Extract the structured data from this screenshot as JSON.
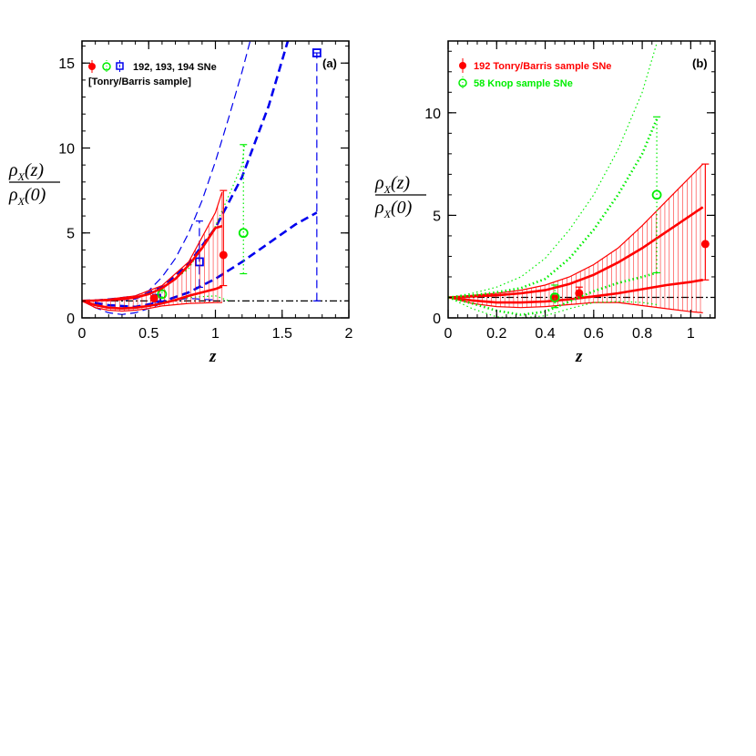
{
  "colors": {
    "red": "#ff0000",
    "green": "#00ee00",
    "blue": "#0000ee",
    "black": "#000000"
  },
  "chart_data": [
    {
      "type": "line",
      "panel_tag": "(a)",
      "xlabel": "z",
      "ylabel": {
        "main": "ρ",
        "sub": "X",
        "num_arg": "(z)",
        "den_arg": "(0)"
      },
      "xlim": [
        0,
        2
      ],
      "ylim": [
        0,
        16.3
      ],
      "xticks": [
        0,
        0.5,
        1,
        1.5,
        2
      ],
      "xtick_labels": [
        "0",
        "0.5",
        "1",
        "1.5",
        "2"
      ],
      "yticks": [
        0,
        5,
        10,
        15
      ],
      "ytick_labels": [
        "0",
        "5",
        "10",
        "15"
      ],
      "legend": {
        "placement": "top-left",
        "line1": "192, 193, 194 SNe",
        "line2": "[Tonry/Barris sample]"
      },
      "reference_line": {
        "y": 1,
        "style": "dash-dot",
        "color": "#000000"
      },
      "series": [
        {
          "color": "#0000ee",
          "style": "dashed",
          "band_lower_outer": [
            [
              0,
              1
            ],
            [
              0.1,
              0.6
            ],
            [
              0.2,
              0.3
            ],
            [
              0.3,
              0.2
            ],
            [
              0.4,
              0.3
            ],
            [
              0.5,
              0.55
            ],
            [
              0.6,
              0.85
            ],
            [
              0.7,
              1.05
            ],
            [
              0.8,
              1.15
            ],
            [
              0.9,
              1.1
            ],
            [
              1.0,
              1.05
            ]
          ],
          "band_upper_outer": [
            [
              0,
              1
            ],
            [
              0.1,
              1.05
            ],
            [
              0.2,
              1.12
            ],
            [
              0.3,
              1.2
            ],
            [
              0.4,
              1.3
            ],
            [
              0.5,
              1.6
            ],
            [
              0.6,
              2.4
            ],
            [
              0.7,
              3.5
            ],
            [
              0.8,
              5.0
            ],
            [
              0.9,
              6.9
            ],
            [
              1.0,
              9.2
            ],
            [
              1.1,
              11.8
            ],
            [
              1.2,
              14.5
            ],
            [
              1.3,
              17.5
            ]
          ],
          "band_lower_inner": [
            [
              0,
              1
            ],
            [
              0.2,
              0.75
            ],
            [
              0.4,
              0.65
            ],
            [
              0.6,
              0.95
            ],
            [
              0.8,
              1.5
            ],
            [
              1.0,
              2.3
            ],
            [
              1.2,
              3.3
            ],
            [
              1.4,
              4.4
            ],
            [
              1.6,
              5.5
            ],
            [
              1.76,
              6.2
            ]
          ],
          "band_upper_inner": [
            [
              0,
              1
            ],
            [
              0.2,
              1.05
            ],
            [
              0.4,
              1.15
            ],
            [
              0.6,
              1.8
            ],
            [
              0.8,
              3.2
            ],
            [
              1.0,
              5.3
            ],
            [
              1.2,
              8.3
            ],
            [
              1.4,
              12.5
            ],
            [
              1.55,
              16.5
            ]
          ],
          "points": [
            {
              "x": 0.56,
              "y": 1.15,
              "err_lo": 0.15,
              "err_hi": 0.15
            },
            {
              "x": 0.88,
              "y": 3.3,
              "err_lo": 1.5,
              "err_hi": 2.4
            },
            {
              "x": 1.76,
              "y": 15.6,
              "err_lo": 14.6,
              "err_hi": 0
            }
          ],
          "marker": "open-square"
        },
        {
          "color": "#00ee00",
          "style": "dotted",
          "band_lower_outer": [
            [
              0,
              1
            ],
            [
              0.2,
              0.6
            ],
            [
              0.4,
              0.55
            ],
            [
              0.6,
              0.9
            ],
            [
              0.8,
              1.2
            ],
            [
              1.0,
              1.3
            ],
            [
              1.1,
              1.0
            ]
          ],
          "band_upper_outer": [
            [
              0,
              1
            ],
            [
              0.2,
              1.05
            ],
            [
              0.4,
              1.2
            ],
            [
              0.6,
              1.7
            ],
            [
              0.8,
              2.9
            ],
            [
              1.0,
              5.4
            ],
            [
              1.2,
              9.0
            ],
            [
              1.22,
              10.3
            ]
          ],
          "points": [
            {
              "x": 0.6,
              "y": 1.4,
              "err_lo": 0.2,
              "err_hi": 0.2
            },
            {
              "x": 1.21,
              "y": 5.0,
              "err_lo": 2.4,
              "err_hi": 5.2
            }
          ],
          "marker": "open-circle"
        },
        {
          "color": "#ff0000",
          "style": "solid",
          "band_lower": [
            [
              0,
              1
            ],
            [
              0.1,
              0.75
            ],
            [
              0.2,
              0.6
            ],
            [
              0.3,
              0.55
            ],
            [
              0.4,
              0.6
            ],
            [
              0.5,
              0.7
            ],
            [
              0.6,
              0.85
            ],
            [
              0.7,
              1.05
            ],
            [
              0.8,
              1.3
            ],
            [
              0.9,
              1.5
            ],
            [
              1.0,
              1.7
            ],
            [
              1.05,
              1.85
            ]
          ],
          "band_upper": [
            [
              0,
              1
            ],
            [
              0.1,
              1.02
            ],
            [
              0.2,
              1.05
            ],
            [
              0.3,
              1.1
            ],
            [
              0.4,
              1.2
            ],
            [
              0.5,
              1.4
            ],
            [
              0.6,
              1.75
            ],
            [
              0.7,
              2.3
            ],
            [
              0.8,
              3.1
            ],
            [
              0.9,
              4.1
            ],
            [
              1.0,
              5.3
            ],
            [
              1.05,
              5.4
            ]
          ],
          "outer_lower": [
            [
              0,
              1
            ],
            [
              0.1,
              0.6
            ],
            [
              0.2,
              0.45
            ],
            [
              0.3,
              0.4
            ],
            [
              0.4,
              0.45
            ],
            [
              0.5,
              0.55
            ],
            [
              0.6,
              0.7
            ],
            [
              0.8,
              0.85
            ],
            [
              1.0,
              0.9
            ],
            [
              1.05,
              0.9
            ]
          ],
          "outer_upper": [
            [
              0,
              1
            ],
            [
              0.2,
              1.1
            ],
            [
              0.4,
              1.3
            ],
            [
              0.6,
              1.9
            ],
            [
              0.8,
              3.3
            ],
            [
              1.0,
              6.2
            ],
            [
              1.05,
              7.4
            ]
          ],
          "points": [
            {
              "x": 0.54,
              "y": 1.15,
              "err_lo": 0.15,
              "err_hi": 0.15
            },
            {
              "x": 1.06,
              "y": 3.7,
              "err_lo": 1.8,
              "err_hi": 3.8
            }
          ],
          "marker": "filled-circle"
        }
      ]
    },
    {
      "type": "line",
      "panel_tag": "(b)",
      "xlabel": "z",
      "ylabel": {
        "main": "ρ",
        "sub": "X",
        "num_arg": "(z)",
        "den_arg": "(0)"
      },
      "xlim": [
        0,
        1.1
      ],
      "ylim": [
        0,
        13.5
      ],
      "xticks": [
        0,
        0.2,
        0.4,
        0.6,
        0.8,
        1.0
      ],
      "xtick_labels": [
        "0",
        "0.2",
        "0.4",
        "0.6",
        "0.8",
        "1"
      ],
      "yticks": [
        0,
        5,
        10
      ],
      "ytick_labels": [
        "0",
        "5",
        "10"
      ],
      "legend": {
        "placement": "top-left",
        "red_label": "192 Tonry/Barris sample SNe",
        "green_label": "58 Knop sample SNe"
      },
      "reference_line": {
        "y": 1,
        "style": "dash-dot",
        "color": "#000000"
      },
      "series": [
        {
          "color": "#ff0000",
          "style": "solid",
          "band_lower": [
            [
              0,
              1
            ],
            [
              0.1,
              0.85
            ],
            [
              0.2,
              0.75
            ],
            [
              0.3,
              0.75
            ],
            [
              0.4,
              0.8
            ],
            [
              0.5,
              0.9
            ],
            [
              0.6,
              1.05
            ],
            [
              0.7,
              1.2
            ],
            [
              0.8,
              1.4
            ],
            [
              0.9,
              1.6
            ],
            [
              1.0,
              1.75
            ],
            [
              1.05,
              1.85
            ]
          ],
          "band_upper": [
            [
              0,
              1
            ],
            [
              0.1,
              1.05
            ],
            [
              0.2,
              1.1
            ],
            [
              0.3,
              1.2
            ],
            [
              0.4,
              1.35
            ],
            [
              0.5,
              1.65
            ],
            [
              0.6,
              2.1
            ],
            [
              0.7,
              2.7
            ],
            [
              0.8,
              3.4
            ],
            [
              0.9,
              4.2
            ],
            [
              1.0,
              5.0
            ],
            [
              1.05,
              5.4
            ]
          ],
          "outer_lower": [
            [
              0,
              1
            ],
            [
              0.1,
              0.7
            ],
            [
              0.2,
              0.55
            ],
            [
              0.3,
              0.5
            ],
            [
              0.4,
              0.55
            ],
            [
              0.5,
              0.65
            ],
            [
              0.6,
              0.75
            ],
            [
              0.7,
              0.75
            ],
            [
              0.8,
              0.6
            ],
            [
              0.9,
              0.45
            ],
            [
              1.0,
              0.3
            ],
            [
              1.05,
              0.25
            ]
          ],
          "outer_upper": [
            [
              0,
              1
            ],
            [
              0.1,
              1.1
            ],
            [
              0.2,
              1.2
            ],
            [
              0.3,
              1.35
            ],
            [
              0.4,
              1.6
            ],
            [
              0.5,
              2.0
            ],
            [
              0.6,
              2.6
            ],
            [
              0.7,
              3.4
            ],
            [
              0.8,
              4.5
            ],
            [
              0.9,
              5.7
            ],
            [
              1.0,
              6.9
            ],
            [
              1.05,
              7.5
            ]
          ],
          "points": [
            {
              "x": 0.44,
              "y": 0.95,
              "err_lo": 0.15,
              "err_hi": 0.15
            },
            {
              "x": 0.54,
              "y": 1.2,
              "err_lo": 0.25,
              "err_hi": 0.3
            },
            {
              "x": 1.06,
              "y": 3.6,
              "err_lo": 1.75,
              "err_hi": 3.9
            }
          ],
          "marker": "filled-circle"
        },
        {
          "color": "#00ee00",
          "style": "dotted",
          "band_lower": [
            [
              0,
              1
            ],
            [
              0.1,
              0.7
            ],
            [
              0.2,
              0.35
            ],
            [
              0.3,
              0.15
            ],
            [
              0.4,
              0.3
            ],
            [
              0.5,
              0.8
            ],
            [
              0.6,
              1.3
            ],
            [
              0.7,
              1.7
            ],
            [
              0.8,
              2.0
            ],
            [
              0.86,
              2.2
            ]
          ],
          "band_upper": [
            [
              0,
              1
            ],
            [
              0.1,
              1.1
            ],
            [
              0.2,
              1.25
            ],
            [
              0.3,
              1.45
            ],
            [
              0.4,
              1.9
            ],
            [
              0.5,
              2.9
            ],
            [
              0.6,
              4.3
            ],
            [
              0.7,
              6.0
            ],
            [
              0.8,
              8.0
            ],
            [
              0.86,
              9.7
            ]
          ],
          "outer_lower": [
            [
              0,
              1
            ],
            [
              0.1,
              0.45
            ],
            [
              0.2,
              0.05
            ],
            [
              0.3,
              0.0
            ],
            [
              0.4,
              0.1
            ],
            [
              0.5,
              0.45
            ],
            [
              0.6,
              0.75
            ],
            [
              0.7,
              0.8
            ],
            [
              0.8,
              0.75
            ],
            [
              0.86,
              0.65
            ]
          ],
          "outer_upper": [
            [
              0,
              1
            ],
            [
              0.1,
              1.2
            ],
            [
              0.2,
              1.5
            ],
            [
              0.3,
              2.0
            ],
            [
              0.4,
              2.9
            ],
            [
              0.5,
              4.3
            ],
            [
              0.6,
              6.0
            ],
            [
              0.7,
              8.2
            ],
            [
              0.8,
              11.0
            ],
            [
              0.86,
              13.4
            ]
          ],
          "points": [
            {
              "x": 0.44,
              "y": 1.0,
              "err_lo": 0.5,
              "err_hi": 0.6
            },
            {
              "x": 0.86,
              "y": 6.0,
              "err_lo": 3.8,
              "err_hi": 3.8
            }
          ],
          "marker": "open-circle"
        }
      ]
    }
  ]
}
